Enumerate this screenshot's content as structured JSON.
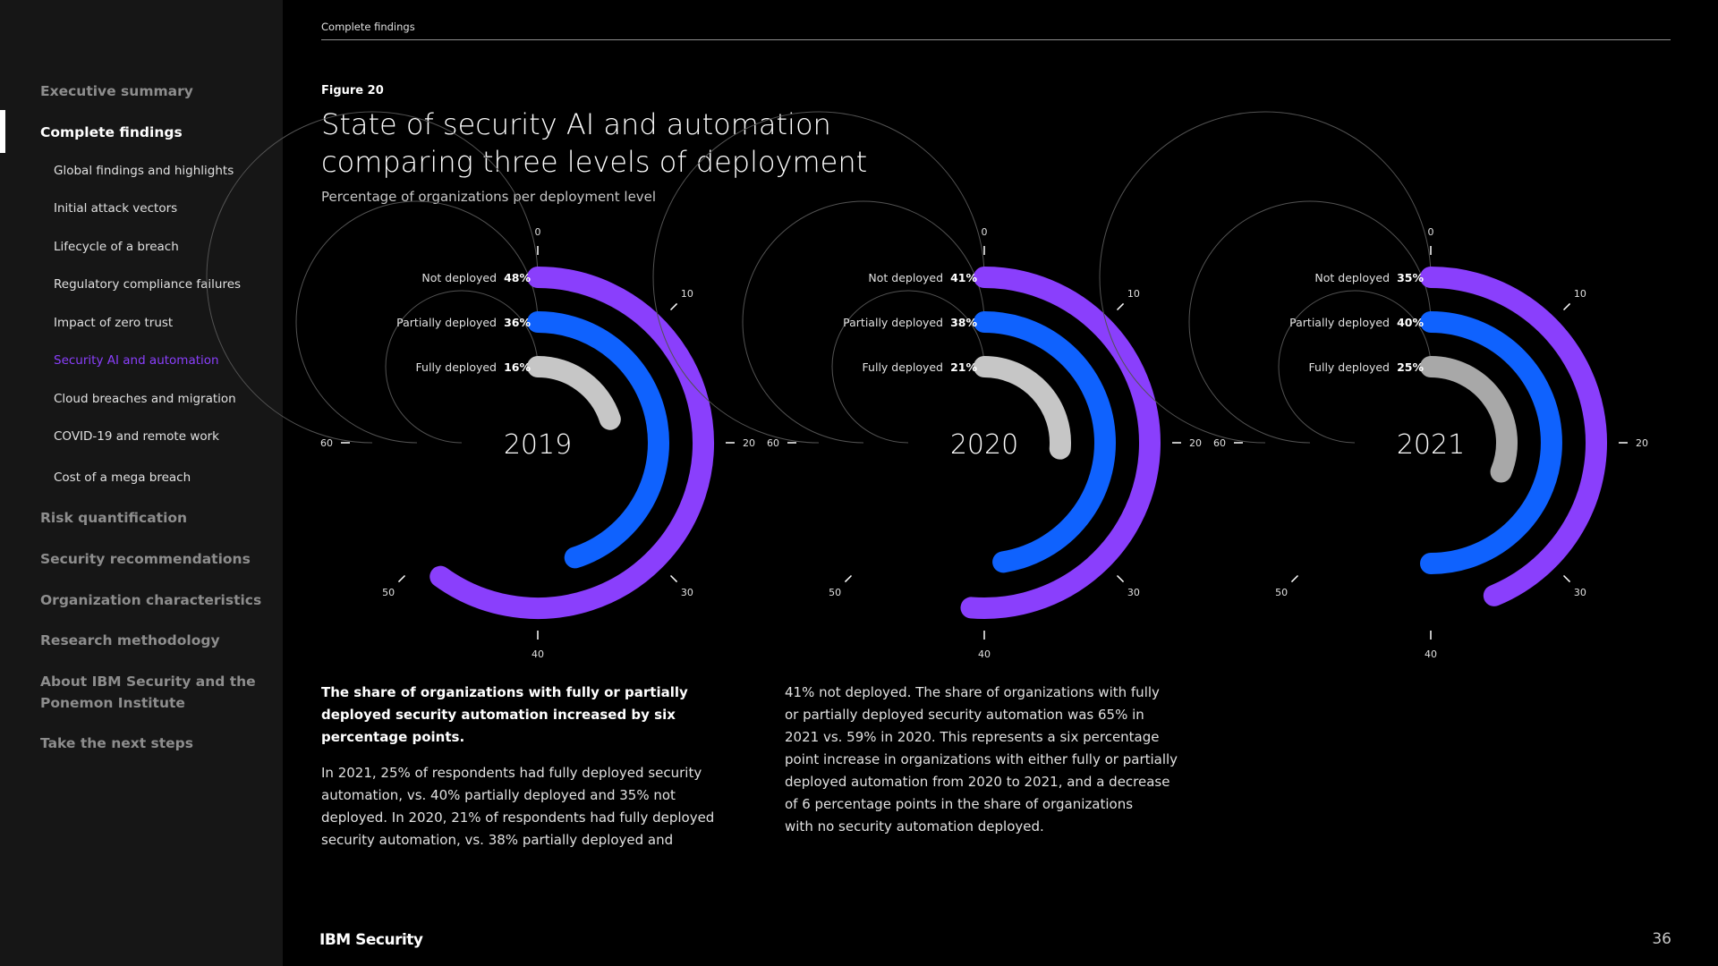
{
  "sidebar": {
    "items": [
      {
        "label": "Executive summary"
      },
      {
        "label": "Complete findings"
      },
      {
        "label": "Global findings and highlights"
      },
      {
        "label": "Initial attack vectors"
      },
      {
        "label": "Lifecycle of a breach"
      },
      {
        "label": "Regulatory compliance failures"
      },
      {
        "label": "Impact of zero trust"
      },
      {
        "label": "Security AI and automation"
      },
      {
        "label": "Cloud breaches and migration"
      },
      {
        "label": "COVID-19 and remote work"
      },
      {
        "label": "Cost of a mega breach"
      },
      {
        "label": "Risk quantification"
      },
      {
        "label": "Security recommendations"
      },
      {
        "label": "Organization characteristics"
      },
      {
        "label": "Research methodology"
      },
      {
        "label": "About IBM Security and the"
      },
      {
        "label": "Ponemon Institute"
      },
      {
        "label": "Take the next steps"
      }
    ]
  },
  "header": {
    "breadcrumb": "Complete findings"
  },
  "figure": {
    "label": "Figure 20",
    "title_line1": "State of security AI and automation",
    "title_line2": "comparing three levels of deployment",
    "subtitle": "Percentage of organizations per deployment level"
  },
  "colors": {
    "not_deployed": "#8a3ffc",
    "partially_deployed": "#0f62fe",
    "fully_deployed_2019": "#c6c6c6",
    "fully_deployed_2020": "#c6c6c6",
    "fully_deployed_2021": "#a8a8a8",
    "track": "#525252"
  },
  "chart_data": [
    {
      "type": "radial-bar",
      "title": "2019",
      "categories": [
        "Not deployed",
        "Partially deployed",
        "Fully deployed"
      ],
      "values": [
        48,
        36,
        16
      ],
      "value_labels": [
        "48%",
        "36%",
        "16%"
      ],
      "axis_ticks": [
        "0",
        "10",
        "20",
        "30",
        "40",
        "50",
        "60"
      ],
      "axis_max": 60
    },
    {
      "type": "radial-bar",
      "title": "2020",
      "categories": [
        "Not deployed",
        "Partially deployed",
        "Fully deployed"
      ],
      "values": [
        41,
        38,
        21
      ],
      "value_labels": [
        "41%",
        "38%",
        "21%"
      ],
      "axis_ticks": [
        "0",
        "10",
        "20",
        "30",
        "40",
        "50",
        "60"
      ],
      "axis_max": 60
    },
    {
      "type": "radial-bar",
      "title": "2021",
      "categories": [
        "Not deployed",
        "Partially deployed",
        "Fully deployed"
      ],
      "values": [
        35,
        40,
        25
      ],
      "value_labels": [
        "35%",
        "40%",
        "25%"
      ],
      "axis_ticks": [
        "0",
        "10",
        "20",
        "30",
        "40",
        "50",
        "60"
      ],
      "axis_max": 60
    }
  ],
  "text": {
    "left_bold": [
      "The share of organizations with fully or partially",
      "deployed security automation increased by six",
      "percentage points."
    ],
    "left_body": [
      "In 2021, 25% of respondents had fully deployed security",
      "automation, vs. 40% partially deployed and 35% not",
      "deployed. In 2020, 21% of respondents had fully deployed",
      "security automation, vs. 38% partially deployed and"
    ],
    "right_body": [
      "41% not deployed. The share of organizations with fully",
      "or partially deployed security automation was 65% in",
      "2021 vs. 59% in 2020. This represents a six percentage",
      "point increase in organizations with either fully or partially",
      "deployed automation from 2020 to 2021, and a decrease",
      "of 6 percentage points in the share of organizations",
      "with no security automation deployed."
    ]
  },
  "footer": {
    "logo": "IBM Security",
    "page_number": "36"
  }
}
